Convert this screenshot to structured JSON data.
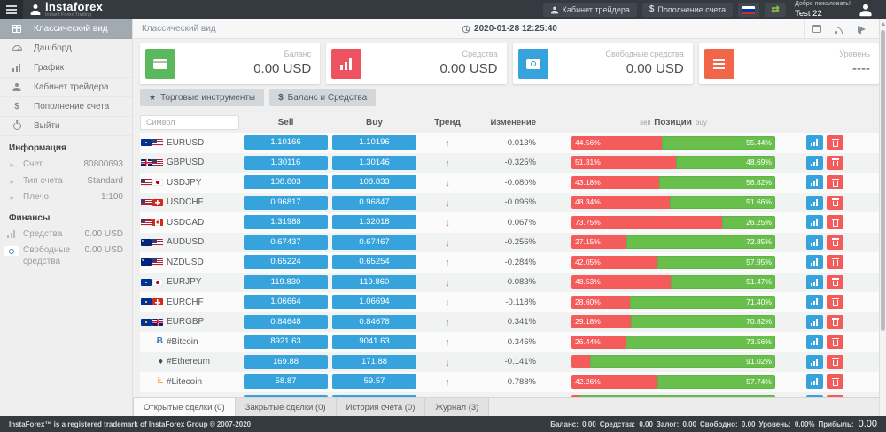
{
  "header": {
    "logo": {
      "title": "instaforex",
      "subtitle": "Instant Forex Trading"
    },
    "buttons": {
      "cabinet": "Кабинет трейдера",
      "deposit_prefix": "$",
      "deposit": "Пополнение счета"
    },
    "welcome": "Добро пожаловать!",
    "username": "Test 22"
  },
  "sidebar": {
    "menu": [
      {
        "label": "Классический вид",
        "icon": "grid-icon",
        "active": true
      },
      {
        "label": "Дашборд",
        "icon": "dashboard-icon",
        "active": false
      },
      {
        "label": "График",
        "icon": "bar-chart-icon",
        "active": false
      },
      {
        "label": "Кабинет трейдера",
        "icon": "person-icon",
        "active": false
      },
      {
        "label": "Пополнение счета",
        "icon": "dollar-icon",
        "active": false
      },
      {
        "label": "Выйти",
        "icon": "power-icon",
        "active": false
      }
    ],
    "sections": [
      {
        "title": "Информация",
        "rows": [
          {
            "label": "Счет",
            "value": "80800693",
            "icon": "chevrons-icon"
          },
          {
            "label": "Тип счета",
            "value": "Standard",
            "icon": "chevrons-icon"
          },
          {
            "label": "Плечо",
            "value": "1:100",
            "icon": "chevrons-icon"
          }
        ]
      },
      {
        "title": "Финансы",
        "rows": [
          {
            "label": "Средства",
            "value": "0.00 USD",
            "icon": "bar-chart-icon"
          },
          {
            "label": "Свободные средства",
            "value": "0.00 USD",
            "icon": "money-icon"
          }
        ]
      }
    ]
  },
  "topbar": {
    "title": "Классический вид",
    "datetime": "2020-01-28 12:25:40"
  },
  "cards": [
    {
      "label": "Баланс",
      "value": "0.00 USD",
      "icon": "credit-card-icon",
      "color": "#5cb85c"
    },
    {
      "label": "Средства",
      "value": "0.00 USD",
      "icon": "bar-chart-icon",
      "color": "#ef5360"
    },
    {
      "label": "Свободные средства",
      "value": "0.00 USD",
      "icon": "money-icon",
      "color": "#36a3dc"
    },
    {
      "label": "Уровень",
      "value": "----",
      "icon": "list-icon",
      "color": "#f26549"
    }
  ],
  "toolbar": [
    {
      "label": "Торговые инструменты",
      "icon": "star-icon"
    },
    {
      "label": "Баланс и Средства",
      "icon": "dollar-icon"
    }
  ],
  "table": {
    "search_placeholder": "Символ",
    "headers": {
      "sell": "Sell",
      "buy": "Buy",
      "trend": "Тренд",
      "change": "Изменение",
      "positions_left": "sell",
      "positions_center": "Позиции",
      "positions_right": "buy"
    },
    "rows": [
      {
        "symbol": "EURUSD",
        "icons": [
          "flag-eu",
          "flag-us"
        ],
        "sell": "1.10166",
        "buy": "1.10196",
        "trend": "up",
        "change": "-0.013%",
        "sell_pct": 44.56,
        "buy_pct": 55.44,
        "sell_label": "44.56%",
        "buy_label": "55.44%"
      },
      {
        "symbol": "GBPUSD",
        "icons": [
          "flag-gb",
          "flag-us"
        ],
        "sell": "1.30116",
        "buy": "1.30146",
        "trend": "up",
        "change": "-0.325%",
        "sell_pct": 51.31,
        "buy_pct": 48.69,
        "sell_label": "51.31%",
        "buy_label": "48.69%"
      },
      {
        "symbol": "USDJPY",
        "icons": [
          "flag-us",
          "flag-jp"
        ],
        "sell": "108.803",
        "buy": "108.833",
        "trend": "down",
        "change": "-0.080%",
        "sell_pct": 43.18,
        "buy_pct": 56.82,
        "sell_label": "43.18%",
        "buy_label": "56.82%"
      },
      {
        "symbol": "USDCHF",
        "icons": [
          "flag-us",
          "flag-ch"
        ],
        "sell": "0.96817",
        "buy": "0.96847",
        "trend": "down",
        "change": "-0.096%",
        "sell_pct": 48.34,
        "buy_pct": 51.66,
        "sell_label": "48.34%",
        "buy_label": "51.66%"
      },
      {
        "symbol": "USDCAD",
        "icons": [
          "flag-us",
          "flag-ca"
        ],
        "sell": "1.31988",
        "buy": "1.32018",
        "trend": "down",
        "change": "0.067%",
        "sell_pct": 73.75,
        "buy_pct": 26.25,
        "sell_label": "73.75%",
        "buy_label": "26.25%"
      },
      {
        "symbol": "AUDUSD",
        "icons": [
          "flag-au",
          "flag-us"
        ],
        "sell": "0.67437",
        "buy": "0.67467",
        "trend": "down",
        "change": "-0.256%",
        "sell_pct": 27.15,
        "buy_pct": 72.85,
        "sell_label": "27.15%",
        "buy_label": "72.85%"
      },
      {
        "symbol": "NZDUSD",
        "icons": [
          "flag-nz",
          "flag-us"
        ],
        "sell": "0.65224",
        "buy": "0.65254",
        "trend": "up",
        "change": "-0.284%",
        "sell_pct": 42.05,
        "buy_pct": 57.95,
        "sell_label": "42.05%",
        "buy_label": "57.95%"
      },
      {
        "symbol": "EURJPY",
        "icons": [
          "flag-eu",
          "flag-jp"
        ],
        "sell": "119.830",
        "buy": "119.860",
        "trend": "down",
        "change": "-0.083%",
        "sell_pct": 48.53,
        "buy_pct": 51.47,
        "sell_label": "48.53%",
        "buy_label": "51.47%"
      },
      {
        "symbol": "EURCHF",
        "icons": [
          "flag-eu",
          "flag-ch"
        ],
        "sell": "1.06664",
        "buy": "1.06694",
        "trend": "down",
        "change": "-0.118%",
        "sell_pct": 28.6,
        "buy_pct": 71.4,
        "sell_label": "28.60%",
        "buy_label": "71.40%"
      },
      {
        "symbol": "EURGBP",
        "icons": [
          "flag-eu",
          "flag-gb"
        ],
        "sell": "0.84648",
        "buy": "0.84678",
        "trend": "up",
        "change": "0.341%",
        "sell_pct": 29.18,
        "buy_pct": 70.82,
        "sell_label": "29.18%",
        "buy_label": "70.82%"
      },
      {
        "symbol": "#Bitcoin",
        "icons": [
          "crypto-btc"
        ],
        "sell": "8921.63",
        "buy": "9041.63",
        "trend": "up",
        "change": "0.346%",
        "sell_pct": 26.44,
        "buy_pct": 73.56,
        "sell_label": "26.44%",
        "buy_label": "73.56%"
      },
      {
        "symbol": "#Ethereum",
        "icons": [
          "crypto-eth"
        ],
        "sell": "169.88",
        "buy": "171.88",
        "trend": "down",
        "change": "-0.141%",
        "sell_pct": 8.98,
        "buy_pct": 91.02,
        "sell_label": "",
        "buy_label": "91.02%"
      },
      {
        "symbol": "#Litecoin",
        "icons": [
          "crypto-ltc"
        ],
        "sell": "58.87",
        "buy": "59.57",
        "trend": "up",
        "change": "0.788%",
        "sell_pct": 42.26,
        "buy_pct": 57.74,
        "sell_label": "42.26%",
        "buy_label": "57.74%"
      },
      {
        "symbol": "",
        "icons": [],
        "sell": "",
        "buy": "",
        "trend": "",
        "change": "",
        "sell_pct": 4,
        "buy_pct": 96,
        "sell_label": "",
        "buy_label": ""
      }
    ]
  },
  "tabs": [
    {
      "label": "Открытые сделки (0)",
      "active": true
    },
    {
      "label": "Закрытые сделки (0)",
      "active": false
    },
    {
      "label": "История счета (0)",
      "active": false
    },
    {
      "label": "Журнал (3)",
      "active": false
    }
  ],
  "footer": {
    "copyright": "InstaForex™ is a registered trademark of InstaForex Group © 2007-2020",
    "summary": [
      {
        "label": "Баланс:",
        "value": "0.00",
        "big": false
      },
      {
        "label": "Средства:",
        "value": "0.00",
        "big": false
      },
      {
        "label": "Залог:",
        "value": "0.00",
        "big": false
      },
      {
        "label": "Свободно:",
        "value": "0.00",
        "big": false
      },
      {
        "label": "Уровень:",
        "value": "0.00%",
        "big": false
      },
      {
        "label": "Прибыль:",
        "value": "0.00",
        "big": true
      }
    ]
  },
  "colors": {
    "accent_blue": "#36a3dc",
    "positive_green": "#69bf4b",
    "negative_red": "#f45c5c",
    "header_dark": "#343a40"
  }
}
